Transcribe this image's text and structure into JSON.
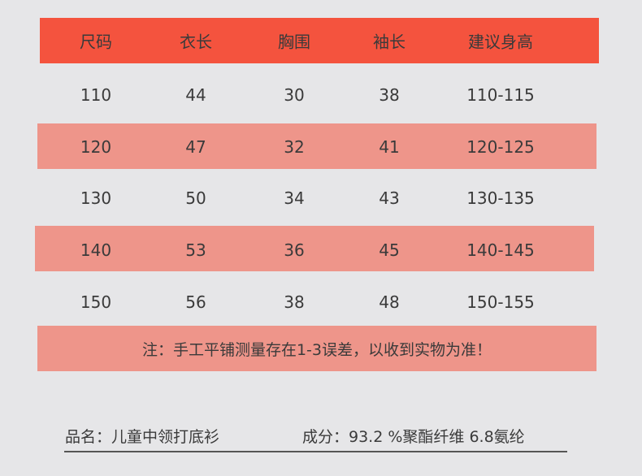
{
  "table": {
    "headers": [
      "尺码",
      "衣长",
      "胸围",
      "袖长",
      "建议身高"
    ],
    "rows": [
      [
        "110",
        "44",
        "30",
        "38",
        "110-115"
      ],
      [
        "120",
        "47",
        "32",
        "41",
        "120-125"
      ],
      [
        "130",
        "50",
        "34",
        "43",
        "130-135"
      ],
      [
        "140",
        "53",
        "36",
        "45",
        "140-145"
      ],
      [
        "150",
        "56",
        "38",
        "48",
        "150-155"
      ]
    ]
  },
  "note": "注：手工平铺测量存在1-3误差，以收到实物为准！",
  "footer": {
    "product_name": "品名：儿童中领打底衫",
    "composition": "成分：93.2 %聚酯纤维 6.8氨纶"
  },
  "colors": {
    "header": "#f4533e",
    "stripe": "#ee958a",
    "background": "#e6e6e8"
  }
}
